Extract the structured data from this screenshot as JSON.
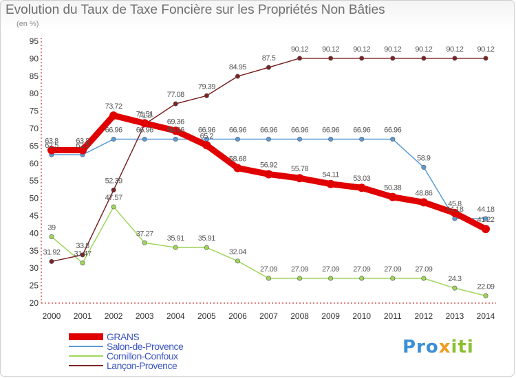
{
  "title": "Evolution du Taux de Taxe Foncière sur les Propriétés Non Bâties",
  "subtitle": "(en %)",
  "logo": {
    "part1": "Pro",
    "part2": "x",
    "part3": "iti"
  },
  "chart_data": {
    "type": "line",
    "x": [
      "2000",
      "2001",
      "2002",
      "2003",
      "2004",
      "2005",
      "2006",
      "2007",
      "2008",
      "2009",
      "2010",
      "2011",
      "2012",
      "2013",
      "2014"
    ],
    "ylim": [
      20,
      95
    ],
    "yticks": [
      "20",
      "25",
      "30",
      "35",
      "40",
      "45",
      "50",
      "55",
      "60",
      "65",
      "70",
      "75",
      "80",
      "85",
      "90",
      "95"
    ],
    "grid": false,
    "legend_position": "bottom-left",
    "series": [
      {
        "name": "GRANS",
        "color": "#e00000",
        "values": [
          63.8,
          63.8,
          73.72,
          71.51,
          69.36,
          65.2,
          58.68,
          56.92,
          55.78,
          54.11,
          53.03,
          50.38,
          48.86,
          45.8,
          41.22
        ],
        "labels": [
          "63.8",
          "63.8",
          "73.72",
          "71.51",
          "69.36",
          "65.2",
          "58.68",
          "56.92",
          "55.78",
          "54.11",
          "53.03",
          "50.38",
          "48.86",
          "45.8",
          "41.22"
        ]
      },
      {
        "name": "Salon-de-Provence",
        "color": "#5b9bd5",
        "values": [
          62.5,
          62.5,
          66.96,
          66.96,
          66.96,
          66.96,
          66.96,
          66.96,
          66.96,
          66.96,
          66.96,
          66.96,
          58.9,
          44.18,
          44.18
        ],
        "labels": [
          "62.5",
          "62.5",
          "66.96",
          "66.96",
          "66.96",
          "66.96",
          "66.96",
          "66.96",
          "66.96",
          "66.96",
          "66.96",
          "66.96",
          "58.9",
          "44.18",
          "44.18"
        ]
      },
      {
        "name": "Cornillon-Confoux",
        "color": "#9fd65a",
        "values": [
          39,
          31.47,
          47.57,
          37.27,
          35.91,
          35.91,
          32.04,
          27.09,
          27.09,
          27.09,
          27.09,
          27.09,
          27.09,
          24.3,
          22.09
        ],
        "labels": [
          "39",
          "31.47",
          "47.57",
          "37.27",
          "35.91",
          "35.91",
          "32.04",
          "27.09",
          "27.09",
          "27.09",
          "27.09",
          "27.09",
          "27.09",
          "24.3",
          "22.09"
        ]
      },
      {
        "name": "Lançon-Provence",
        "color": "#7a2424",
        "values": [
          31.92,
          33.8,
          52.39,
          71.2,
          77.08,
          79.39,
          84.95,
          87.5,
          90.12,
          90.12,
          90.12,
          90.12,
          90.12,
          90.12,
          90.12
        ],
        "labels": [
          "31.92",
          "33.8",
          "52.39",
          "71.2",
          "77.08",
          "79.39",
          "84.95",
          "87.5",
          "90.12",
          "90.12",
          "90.12",
          "90.12",
          "90.12",
          "90.12",
          "90.12"
        ]
      }
    ]
  }
}
